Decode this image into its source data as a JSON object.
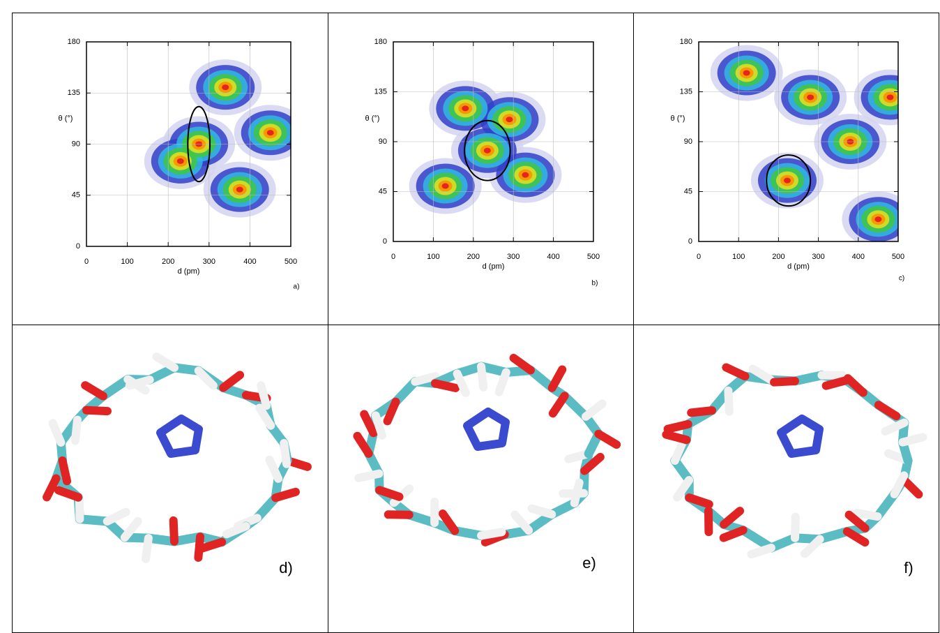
{
  "chart_data": [
    {
      "type": "density",
      "x_label": "d (pm)",
      "y_label": "θ (°)",
      "panel_label": "a)",
      "xlim": [
        0,
        500
      ],
      "ylim": [
        0,
        180
      ],
      "xticks": [
        0,
        100,
        200,
        300,
        400,
        500
      ],
      "yticks": [
        0,
        45,
        90,
        135,
        180
      ],
      "grid": true,
      "peaks": {
        "x": [
          275,
          375,
          340,
          450,
          230
        ],
        "y": [
          90,
          50,
          140,
          100,
          75
        ]
      },
      "highlight": {
        "x": 275,
        "y": 90,
        "rx": 27,
        "ry": 33
      }
    },
    {
      "type": "density",
      "x_label": "d (pm)",
      "y_label": "θ (°)",
      "panel_label": "b)",
      "xlim": [
        0,
        500
      ],
      "ylim": [
        0,
        180
      ],
      "xticks": [
        0,
        100,
        200,
        300,
        400,
        500
      ],
      "yticks": [
        0,
        45,
        90,
        135,
        180
      ],
      "grid": true,
      "peaks": {
        "x": [
          235,
          130,
          290,
          180,
          330
        ],
        "y": [
          82,
          50,
          110,
          120,
          60
        ]
      },
      "highlight": {
        "x": 235,
        "y": 82,
        "rx": 57,
        "ry": 27
      }
    },
    {
      "type": "density",
      "x_label": "d (pm)",
      "y_label": "θ (°)",
      "panel_label": "c)",
      "xlim": [
        0,
        500
      ],
      "ylim": [
        0,
        180
      ],
      "xticks": [
        0,
        100,
        200,
        300,
        400,
        500
      ],
      "yticks": [
        0,
        45,
        90,
        135,
        180
      ],
      "grid": true,
      "peaks": {
        "x": [
          120,
          222,
          280,
          450,
          480,
          380
        ],
        "y": [
          152,
          55,
          130,
          20,
          130,
          90
        ]
      },
      "highlight": {
        "x": 225,
        "y": 55,
        "rx": 55,
        "ry": 23
      }
    }
  ],
  "panels": [
    {
      "label": "d)"
    },
    {
      "label": "e)"
    },
    {
      "label": "f)"
    }
  ]
}
